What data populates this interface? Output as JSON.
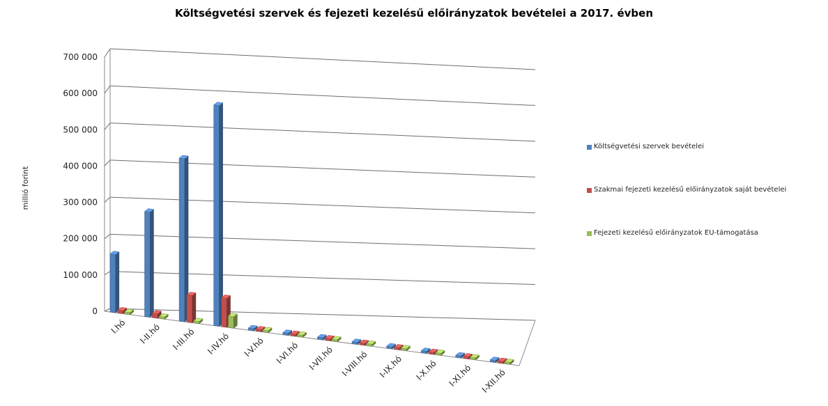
{
  "chart_data": {
    "type": "bar",
    "title": "Költségvetési szervek és fejezeti kezelésű előirányzatok bevételei a 2017. évben",
    "ylabel": "millió forint",
    "xlabel": "",
    "ylim": [
      0,
      700000
    ],
    "yticks": [
      "0",
      "100 000",
      "200 000",
      "300 000",
      "400 000",
      "500 000",
      "600 000",
      "700 000"
    ],
    "categories": [
      "I.hó",
      "I-II.hó",
      "I-III.hó",
      "I-IV.hó",
      "I-V.hó",
      "I-VI.hó",
      "I-VII.hó",
      "I-VIII.hó",
      "I-IX.hó",
      "I-X.hó",
      "I-XI.hó",
      "I-XII.hó"
    ],
    "series": [
      {
        "name": "Költségvetési szervek bevételei",
        "color": "#4F81BD",
        "values": [
          160000,
          290000,
          450000,
          610000,
          null,
          null,
          null,
          null,
          null,
          null,
          null,
          null
        ]
      },
      {
        "name": "Szakmai fejezeti kezelésű előirányzatok saját bevételei",
        "color": "#C0504D",
        "values": [
          8000,
          12000,
          75000,
          80000,
          null,
          null,
          null,
          null,
          null,
          null,
          null,
          null
        ]
      },
      {
        "name": "Fejezeti kezelésű előirányzatok EU-támogatása",
        "color": "#9BBB59",
        "values": [
          3000,
          4000,
          6000,
          32000,
          null,
          null,
          null,
          null,
          null,
          null,
          null,
          null
        ]
      }
    ],
    "legend_position": "right",
    "grid": true,
    "three_d": true
  }
}
